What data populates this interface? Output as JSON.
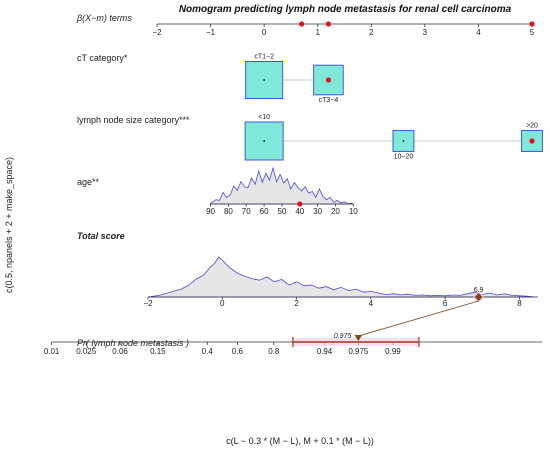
{
  "chart_data": {
    "type": "nomogram",
    "title": "Nomogram predicting lymph node metastasis for renal cell carcinoma",
    "ylabel": "c(0.5, npanels + 2 + make_space)",
    "xlabel": "c(L − 0.3 * (M − L), M + 0.1 * (M − L))",
    "colors": {
      "box_fill": "#7fe8d8",
      "box_border": "#3b5bdb",
      "density_line": "#4a4adf",
      "density_fill": "#e6e6e6",
      "marker": "#e8101a",
      "prob_line": "#9b3a1a",
      "prob_highlight": "#f7c6e6"
    },
    "beta_scale": {
      "label": "β(X−m) terms",
      "range": [
        -2,
        5
      ],
      "ticks": [
        "−2",
        "−1",
        "0",
        "1",
        "2",
        "3",
        "4",
        "5"
      ],
      "tick_values": [
        -2,
        -1,
        0,
        1,
        2,
        3,
        4,
        5
      ],
      "markers": [
        0.7,
        1.2,
        5.0
      ]
    },
    "ct_category": {
      "label": "cT category*",
      "levels": [
        {
          "name": "cT1−2",
          "beta": 0.0,
          "size": 1.0,
          "label_pos": "above",
          "selected": false
        },
        {
          "name": "cT3−4",
          "beta": 1.2,
          "size": 0.8,
          "label_pos": "below",
          "selected": true
        }
      ]
    },
    "ln_size": {
      "label": "lymph node size category***",
      "levels": [
        {
          "name": "<10",
          "beta": 0.0,
          "size": 1.0,
          "label_pos": "above",
          "selected": false
        },
        {
          "name": "10−20",
          "beta": 2.6,
          "size": 0.55,
          "label_pos": "below",
          "selected": false
        },
        {
          "name": ">20",
          "beta": 5.0,
          "size": 0.55,
          "label_pos": "above",
          "selected": true
        }
      ]
    },
    "age": {
      "label": "age**",
      "ticks": [
        "90",
        "80",
        "70",
        "60",
        "50",
        "40",
        "30",
        "20",
        "10"
      ],
      "tick_values": [
        90,
        80,
        70,
        60,
        50,
        40,
        30,
        20,
        10
      ],
      "beta_at_90": -1.0,
      "beta_per_year": -0.0333,
      "selected_age": 40,
      "density_x": [
        90,
        87,
        85,
        83,
        81,
        79,
        77,
        75,
        73,
        71,
        69,
        67,
        65,
        63,
        61,
        59,
        57,
        55,
        53,
        51,
        49,
        47,
        45,
        43,
        41,
        39,
        37,
        35,
        33,
        31,
        29,
        27,
        25,
        23,
        21,
        19,
        17,
        15,
        13,
        11,
        10
      ],
      "density_y": [
        0.02,
        0.12,
        0.1,
        0.32,
        0.18,
        0.25,
        0.5,
        0.38,
        0.62,
        0.48,
        0.45,
        0.72,
        0.55,
        0.92,
        0.6,
        0.85,
        0.66,
        1.0,
        0.62,
        0.82,
        0.58,
        0.7,
        0.42,
        0.6,
        0.45,
        0.36,
        0.48,
        0.3,
        0.35,
        0.18,
        0.42,
        0.2,
        0.12,
        0.18,
        0.05,
        0.1,
        0.03,
        0.06,
        0.01,
        0.02,
        0.0
      ]
    },
    "total_score": {
      "label": "Total score",
      "range": [
        -2,
        8.5
      ],
      "ticks": [
        "−2",
        "0",
        "2",
        "4",
        "6",
        "8"
      ],
      "tick_values": [
        -2,
        0,
        2,
        4,
        6,
        8
      ],
      "selected_value": 6.9,
      "selected_label": "6.9",
      "density_x": [
        -2.0,
        -1.7,
        -1.4,
        -1.1,
        -0.9,
        -0.7,
        -0.5,
        -0.35,
        -0.2,
        -0.1,
        0.0,
        0.1,
        0.25,
        0.4,
        0.6,
        0.8,
        1.0,
        1.2,
        1.4,
        1.6,
        1.8,
        2.0,
        2.2,
        2.4,
        2.6,
        2.8,
        3.0,
        3.2,
        3.4,
        3.6,
        3.8,
        4.0,
        4.2,
        4.4,
        4.6,
        4.8,
        5.0,
        5.2,
        5.4,
        5.6,
        5.8,
        6.0,
        6.2,
        6.4,
        6.6,
        6.8,
        7.0,
        7.2,
        7.4,
        7.6,
        7.8,
        8.0,
        8.2,
        8.4
      ],
      "density_y": [
        0.0,
        0.04,
        0.12,
        0.2,
        0.3,
        0.45,
        0.55,
        0.72,
        0.85,
        1.0,
        0.92,
        0.82,
        0.7,
        0.6,
        0.52,
        0.46,
        0.42,
        0.5,
        0.38,
        0.44,
        0.3,
        0.38,
        0.28,
        0.3,
        0.22,
        0.26,
        0.18,
        0.24,
        0.16,
        0.2,
        0.12,
        0.14,
        0.1,
        0.06,
        0.08,
        0.05,
        0.07,
        0.04,
        0.05,
        0.03,
        0.04,
        0.03,
        0.05,
        0.04,
        0.08,
        0.12,
        0.06,
        0.1,
        0.05,
        0.08,
        0.04,
        0.03,
        0.02,
        0.0
      ]
    },
    "probability": {
      "label": "Pr( lymph node metastasis )",
      "ticks": [
        "0.01",
        "0.025",
        "0.06",
        "0.15",
        "0.4",
        "0.6",
        "0.8",
        "0.94",
        "0.975",
        "0.99"
      ],
      "tick_values": [
        0.01,
        0.025,
        0.06,
        0.15,
        0.4,
        0.6,
        0.8,
        0.94,
        0.975,
        0.99
      ],
      "selected_value": 0.975,
      "selected_label": "0.975",
      "interval": [
        0.87,
        0.995
      ]
    }
  }
}
